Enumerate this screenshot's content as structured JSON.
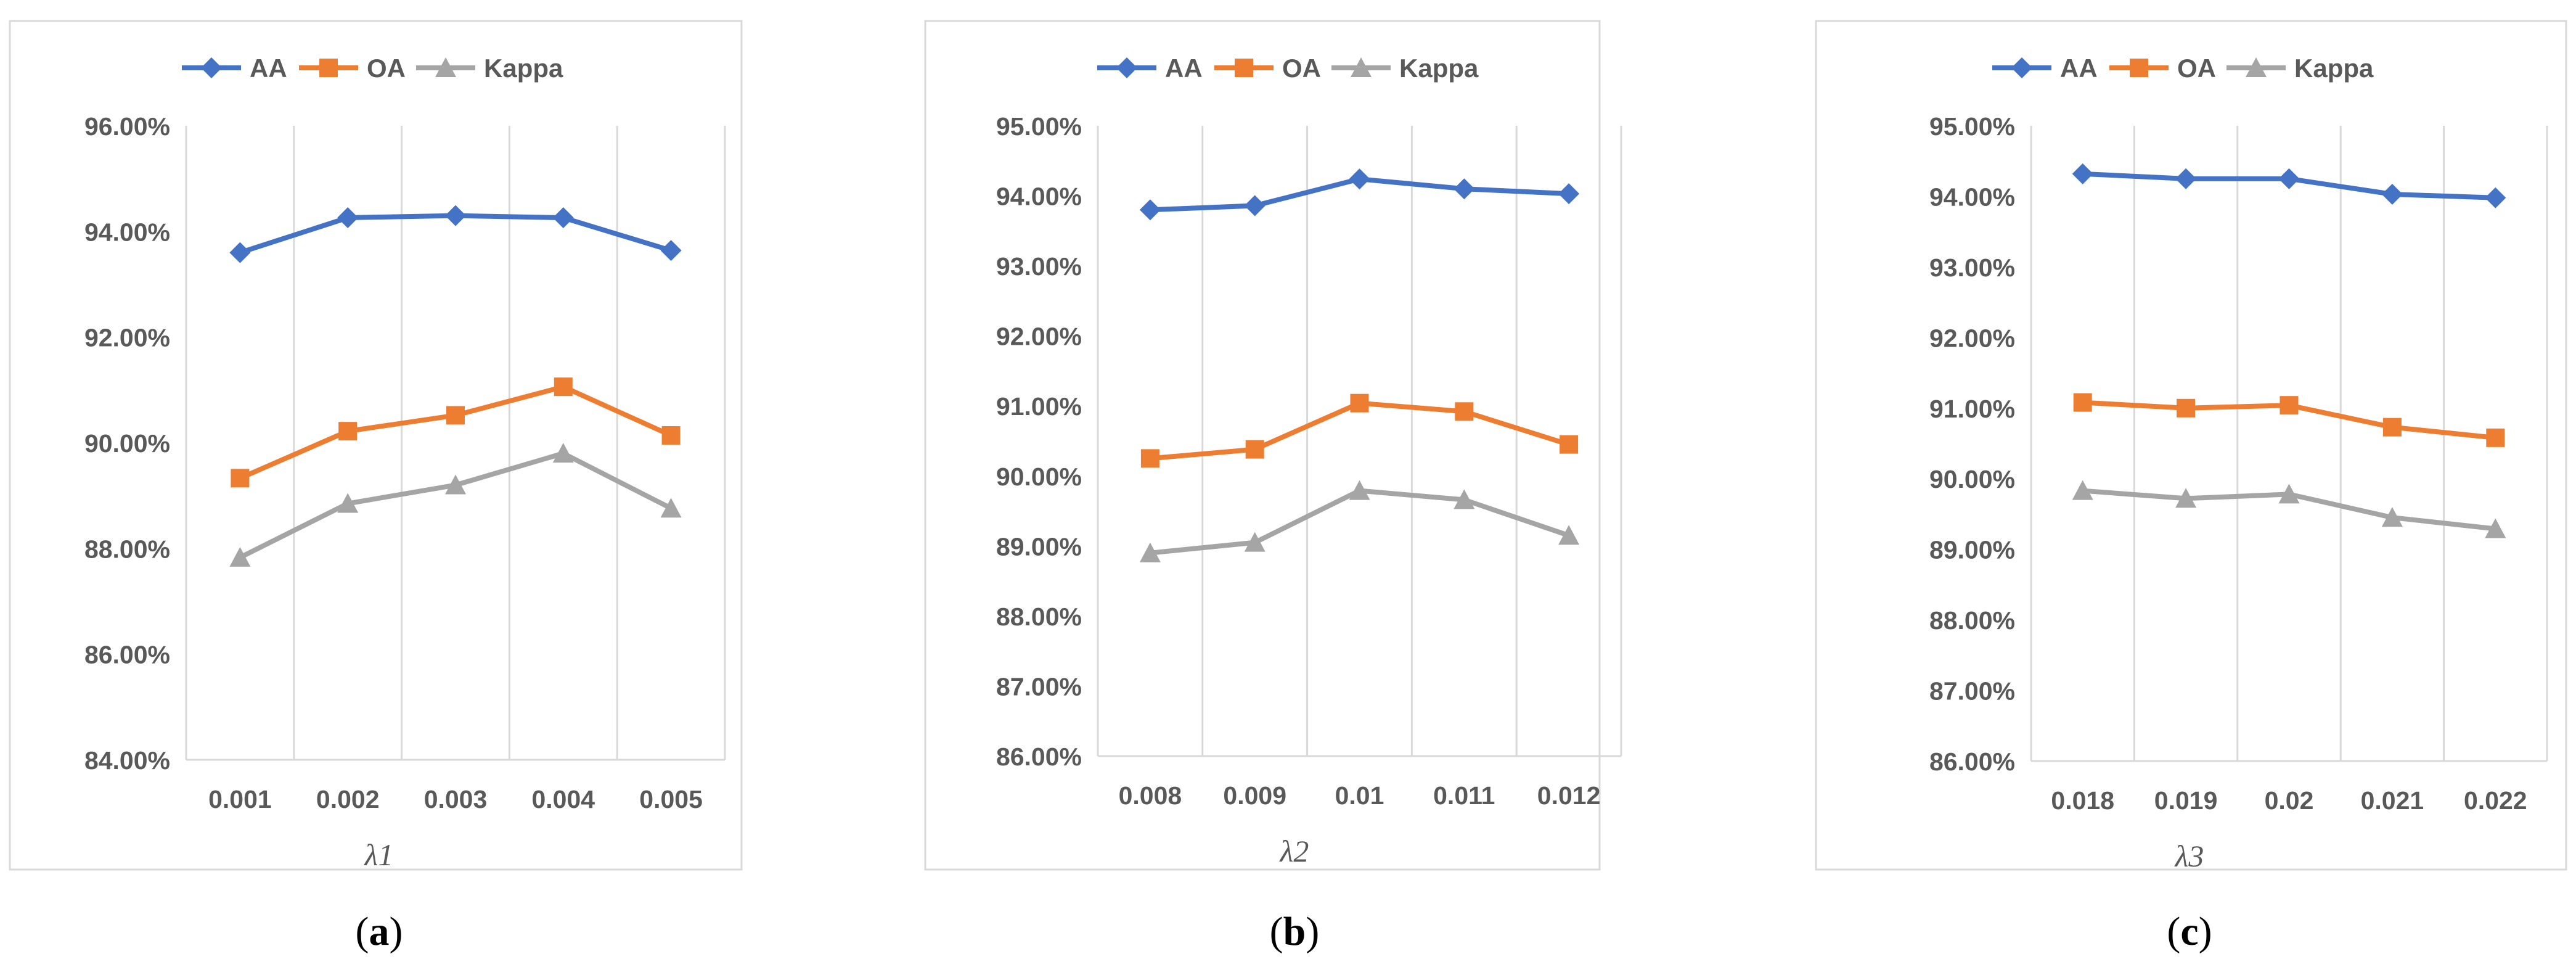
{
  "colors": {
    "aa": "#4472C4",
    "oa": "#ED7D31",
    "kappa": "#A5A5A5",
    "grid": "#D9D9D9",
    "frame": "#D9D9D9",
    "text": "#595959",
    "caption": "#000000"
  },
  "legend_items": [
    "AA",
    "OA",
    "Kappa"
  ],
  "chart_data": [
    {
      "type": "line",
      "panel": "a",
      "caption": "(a)",
      "caption_letter": "a",
      "xlabel": "λ1",
      "categories": [
        "0.001",
        "0.002",
        "0.003",
        "0.004",
        "0.005"
      ],
      "yticks": [
        "84.00%",
        "86.00%",
        "88.00%",
        "90.00%",
        "92.00%",
        "94.00%",
        "96.00%"
      ],
      "ylim": [
        84,
        96
      ],
      "series": [
        {
          "name": "AA",
          "values": [
            93.6,
            94.26,
            94.3,
            94.26,
            93.64
          ]
        },
        {
          "name": "OA",
          "values": [
            89.33,
            90.22,
            90.52,
            91.06,
            90.14
          ]
        },
        {
          "name": "Kappa",
          "values": [
            87.83,
            88.85,
            89.2,
            89.8,
            88.76
          ]
        }
      ]
    },
    {
      "type": "line",
      "panel": "b",
      "caption": "(b)",
      "caption_letter": "b",
      "xlabel": "λ2",
      "categories": [
        "0.008",
        "0.009",
        "0.01",
        "0.011",
        "0.012"
      ],
      "yticks": [
        "86.00%",
        "87.00%",
        "88.00%",
        "89.00%",
        "90.00%",
        "91.00%",
        "92.00%",
        "93.00%",
        "94.00%",
        "95.00%"
      ],
      "ylim": [
        86,
        95
      ],
      "series": [
        {
          "name": "AA",
          "values": [
            93.8,
            93.86,
            94.24,
            94.1,
            94.03
          ]
        },
        {
          "name": "OA",
          "values": [
            90.25,
            90.38,
            91.04,
            90.92,
            90.45
          ]
        },
        {
          "name": "Kappa",
          "values": [
            88.9,
            89.05,
            89.79,
            89.66,
            89.15
          ]
        }
      ]
    },
    {
      "type": "line",
      "panel": "c",
      "caption": "(c)",
      "caption_letter": "c",
      "xlabel": "λ3",
      "categories": [
        "0.018",
        "0.019",
        "0.02",
        "0.021",
        "0.022"
      ],
      "yticks": [
        "86.00%",
        "87.00%",
        "88.00%",
        "89.00%",
        "90.00%",
        "91.00%",
        "92.00%",
        "93.00%",
        "94.00%",
        "95.00%"
      ],
      "ylim": [
        86,
        95
      ],
      "series": [
        {
          "name": "AA",
          "values": [
            94.32,
            94.25,
            94.25,
            94.03,
            93.98
          ]
        },
        {
          "name": "OA",
          "values": [
            91.08,
            91.0,
            91.04,
            90.73,
            90.58
          ]
        },
        {
          "name": "Kappa",
          "values": [
            89.83,
            89.72,
            89.78,
            89.45,
            89.29
          ]
        }
      ]
    }
  ]
}
